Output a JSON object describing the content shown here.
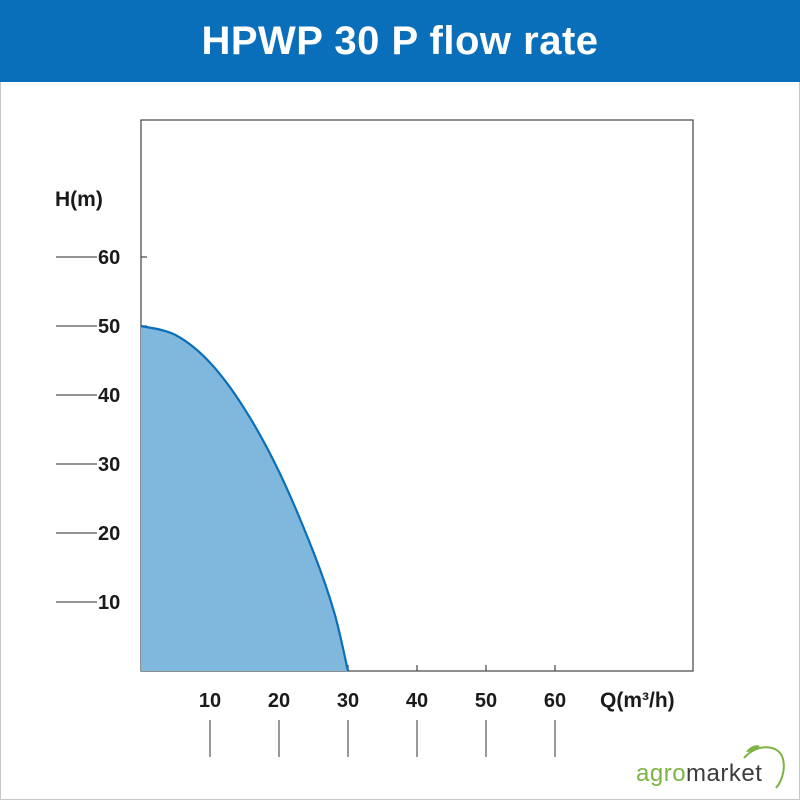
{
  "header": {
    "title": "HPWP 30 P flow rate"
  },
  "chart_data": {
    "type": "area",
    "xlabel": "Q(m³/h)",
    "ylabel": "H(m)",
    "x_ticks": [
      10,
      20,
      30,
      40,
      50,
      60
    ],
    "y_ticks": [
      10,
      20,
      30,
      40,
      50,
      60
    ],
    "xlim": [
      0,
      80
    ],
    "ylim": [
      0,
      80
    ],
    "grid": false,
    "series": [
      {
        "x": [
          0,
          5,
          10,
          15,
          20,
          25,
          28,
          30
        ],
        "y": [
          50,
          48.7,
          44.7,
          38,
          28.9,
          17.2,
          8.5,
          0
        ],
        "color": "#0a6fba",
        "fill": "#7fb8dc"
      }
    ]
  },
  "logo": {
    "part1": "agro",
    "part2": "market"
  },
  "colors": {
    "header_bg": "#0a6fba",
    "curve": "#0a6fba",
    "fill": "#7fb8dc",
    "logo_green": "#7cb342"
  }
}
